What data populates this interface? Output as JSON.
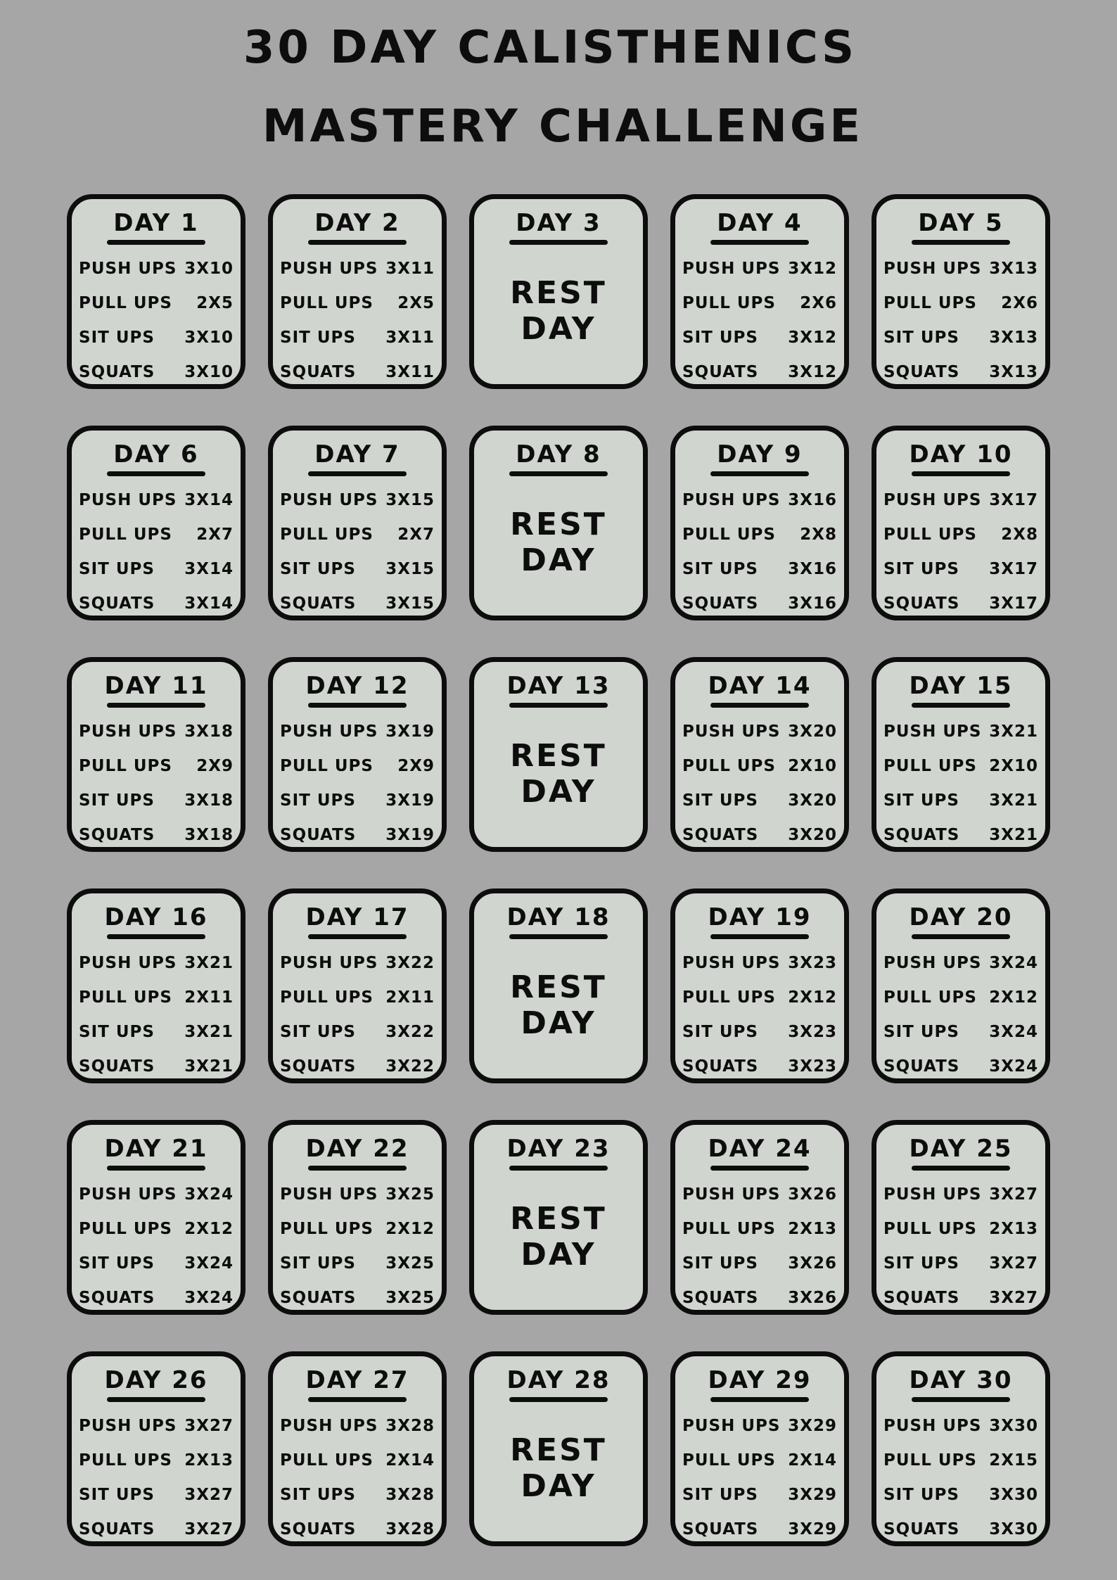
{
  "title": {
    "line1": "30 DAY CALISTHENICS",
    "line2": "MASTERY CHALLENGE"
  },
  "colors": {
    "background": "#a6a6a6",
    "card": "#d0d6cf",
    "ink": "#0d0d0d"
  },
  "days": [
    {
      "label": "DAY 1",
      "exercises": [
        {
          "name": "PUSH UPS",
          "sets": "3X10"
        },
        {
          "name": "PULL UPS",
          "sets": "2X5"
        },
        {
          "name": "SIT UPS",
          "sets": "3X10"
        },
        {
          "name": "SQUATS",
          "sets": "3X10"
        }
      ]
    },
    {
      "label": "DAY 2",
      "exercises": [
        {
          "name": "PUSH UPS",
          "sets": "3X11"
        },
        {
          "name": "PULL UPS",
          "sets": "2X5"
        },
        {
          "name": "SIT UPS",
          "sets": "3X11"
        },
        {
          "name": "SQUATS",
          "sets": "3X11"
        }
      ]
    },
    {
      "label": "DAY 3",
      "rest": "REST DAY"
    },
    {
      "label": "DAY 4",
      "exercises": [
        {
          "name": "PUSH UPS",
          "sets": "3X12"
        },
        {
          "name": "PULL UPS",
          "sets": "2X6"
        },
        {
          "name": "SIT UPS",
          "sets": "3X12"
        },
        {
          "name": "SQUATS",
          "sets": "3X12"
        }
      ]
    },
    {
      "label": "DAY 5",
      "exercises": [
        {
          "name": "PUSH UPS",
          "sets": "3X13"
        },
        {
          "name": "PULL UPS",
          "sets": "2X6"
        },
        {
          "name": "SIT UPS",
          "sets": "3X13"
        },
        {
          "name": "SQUATS",
          "sets": "3X13"
        }
      ]
    },
    {
      "label": "DAY 6",
      "exercises": [
        {
          "name": "PUSH UPS",
          "sets": "3X14"
        },
        {
          "name": "PULL UPS",
          "sets": "2X7"
        },
        {
          "name": "SIT UPS",
          "sets": "3X14"
        },
        {
          "name": "SQUATS",
          "sets": "3X14"
        }
      ]
    },
    {
      "label": "DAY 7",
      "exercises": [
        {
          "name": "PUSH UPS",
          "sets": "3X15"
        },
        {
          "name": "PULL UPS",
          "sets": "2X7"
        },
        {
          "name": "SIT UPS",
          "sets": "3X15"
        },
        {
          "name": "SQUATS",
          "sets": "3X15"
        }
      ]
    },
    {
      "label": "DAY 8",
      "rest": "REST DAY"
    },
    {
      "label": "DAY 9",
      "exercises": [
        {
          "name": "PUSH UPS",
          "sets": "3X16"
        },
        {
          "name": "PULL UPS",
          "sets": "2X8"
        },
        {
          "name": "SIT UPS",
          "sets": "3X16"
        },
        {
          "name": "SQUATS",
          "sets": "3X16"
        }
      ]
    },
    {
      "label": "DAY 10",
      "exercises": [
        {
          "name": "PUSH UPS",
          "sets": "3X17"
        },
        {
          "name": "PULL UPS",
          "sets": "2X8"
        },
        {
          "name": "SIT UPS",
          "sets": "3X17"
        },
        {
          "name": "SQUATS",
          "sets": "3X17"
        }
      ]
    },
    {
      "label": "DAY 11",
      "exercises": [
        {
          "name": "PUSH UPS",
          "sets": "3X18"
        },
        {
          "name": "PULL UPS",
          "sets": "2X9"
        },
        {
          "name": "SIT UPS",
          "sets": "3X18"
        },
        {
          "name": "SQUATS",
          "sets": "3X18"
        }
      ]
    },
    {
      "label": "DAY 12",
      "exercises": [
        {
          "name": "PUSH UPS",
          "sets": "3X19"
        },
        {
          "name": "PULL UPS",
          "sets": "2X9"
        },
        {
          "name": "SIT UPS",
          "sets": "3X19"
        },
        {
          "name": "SQUATS",
          "sets": "3X19"
        }
      ]
    },
    {
      "label": "DAY 13",
      "rest": "REST DAY"
    },
    {
      "label": "DAY 14",
      "exercises": [
        {
          "name": "PUSH UPS",
          "sets": "3X20"
        },
        {
          "name": "PULL UPS",
          "sets": "2X10"
        },
        {
          "name": "SIT UPS",
          "sets": "3X20"
        },
        {
          "name": "SQUATS",
          "sets": "3X20"
        }
      ]
    },
    {
      "label": "DAY 15",
      "exercises": [
        {
          "name": "PUSH UPS",
          "sets": "3X21"
        },
        {
          "name": "PULL UPS",
          "sets": "2X10"
        },
        {
          "name": "SIT UPS",
          "sets": "3X21"
        },
        {
          "name": "SQUATS",
          "sets": "3X21"
        }
      ]
    },
    {
      "label": "DAY 16",
      "exercises": [
        {
          "name": "PUSH UPS",
          "sets": "3X21"
        },
        {
          "name": "PULL UPS",
          "sets": "2X11"
        },
        {
          "name": "SIT UPS",
          "sets": "3X21"
        },
        {
          "name": "SQUATS",
          "sets": "3X21"
        }
      ]
    },
    {
      "label": "DAY 17",
      "exercises": [
        {
          "name": "PUSH UPS",
          "sets": "3X22"
        },
        {
          "name": "PULL UPS",
          "sets": "2X11"
        },
        {
          "name": "SIT UPS",
          "sets": "3X22"
        },
        {
          "name": "SQUATS",
          "sets": "3X22"
        }
      ]
    },
    {
      "label": "DAY 18",
      "rest": "REST DAY"
    },
    {
      "label": "DAY 19",
      "exercises": [
        {
          "name": "PUSH UPS",
          "sets": "3X23"
        },
        {
          "name": "PULL UPS",
          "sets": "2X12"
        },
        {
          "name": "SIT UPS",
          "sets": "3X23"
        },
        {
          "name": "SQUATS",
          "sets": "3X23"
        }
      ]
    },
    {
      "label": "DAY 20",
      "exercises": [
        {
          "name": "PUSH UPS",
          "sets": "3X24"
        },
        {
          "name": "PULL UPS",
          "sets": "2X12"
        },
        {
          "name": "SIT UPS",
          "sets": "3X24"
        },
        {
          "name": "SQUATS",
          "sets": "3X24"
        }
      ]
    },
    {
      "label": "DAY 21",
      "exercises": [
        {
          "name": "PUSH UPS",
          "sets": "3X24"
        },
        {
          "name": "PULL UPS",
          "sets": "2X12"
        },
        {
          "name": "SIT UPS",
          "sets": "3X24"
        },
        {
          "name": "SQUATS",
          "sets": "3X24"
        }
      ]
    },
    {
      "label": "DAY 22",
      "exercises": [
        {
          "name": "PUSH UPS",
          "sets": "3X25"
        },
        {
          "name": "PULL UPS",
          "sets": "2X12"
        },
        {
          "name": "SIT UPS",
          "sets": "3X25"
        },
        {
          "name": "SQUATS",
          "sets": "3X25"
        }
      ]
    },
    {
      "label": "DAY 23",
      "rest": "REST DAY"
    },
    {
      "label": "DAY 24",
      "exercises": [
        {
          "name": "PUSH UPS",
          "sets": "3X26"
        },
        {
          "name": "PULL UPS",
          "sets": "2X13"
        },
        {
          "name": "SIT UPS",
          "sets": "3X26"
        },
        {
          "name": "SQUATS",
          "sets": "3X26"
        }
      ]
    },
    {
      "label": "DAY 25",
      "exercises": [
        {
          "name": "PUSH UPS",
          "sets": "3X27"
        },
        {
          "name": "PULL UPS",
          "sets": "2X13"
        },
        {
          "name": "SIT UPS",
          "sets": "3X27"
        },
        {
          "name": "SQUATS",
          "sets": "3X27"
        }
      ]
    },
    {
      "label": "DAY 26",
      "exercises": [
        {
          "name": "PUSH UPS",
          "sets": "3X27"
        },
        {
          "name": "PULL UPS",
          "sets": "2X13"
        },
        {
          "name": "SIT UPS",
          "sets": "3X27"
        },
        {
          "name": "SQUATS",
          "sets": "3X27"
        }
      ]
    },
    {
      "label": "DAY 27",
      "exercises": [
        {
          "name": "PUSH UPS",
          "sets": "3X28"
        },
        {
          "name": "PULL UPS",
          "sets": "2X14"
        },
        {
          "name": "SIT UPS",
          "sets": "3X28"
        },
        {
          "name": "SQUATS",
          "sets": "3X28"
        }
      ]
    },
    {
      "label": "DAY 28",
      "rest": "REST DAY"
    },
    {
      "label": "DAY 29",
      "exercises": [
        {
          "name": "PUSH UPS",
          "sets": "3X29"
        },
        {
          "name": "PULL UPS",
          "sets": "2X14"
        },
        {
          "name": "SIT UPS",
          "sets": "3X29"
        },
        {
          "name": "SQUATS",
          "sets": "3X29"
        }
      ]
    },
    {
      "label": "DAY 30",
      "exercises": [
        {
          "name": "PUSH UPS",
          "sets": "3X30"
        },
        {
          "name": "PULL UPS",
          "sets": "2X15"
        },
        {
          "name": "SIT UPS",
          "sets": "3X30"
        },
        {
          "name": "SQUATS",
          "sets": "3X30"
        }
      ]
    }
  ]
}
